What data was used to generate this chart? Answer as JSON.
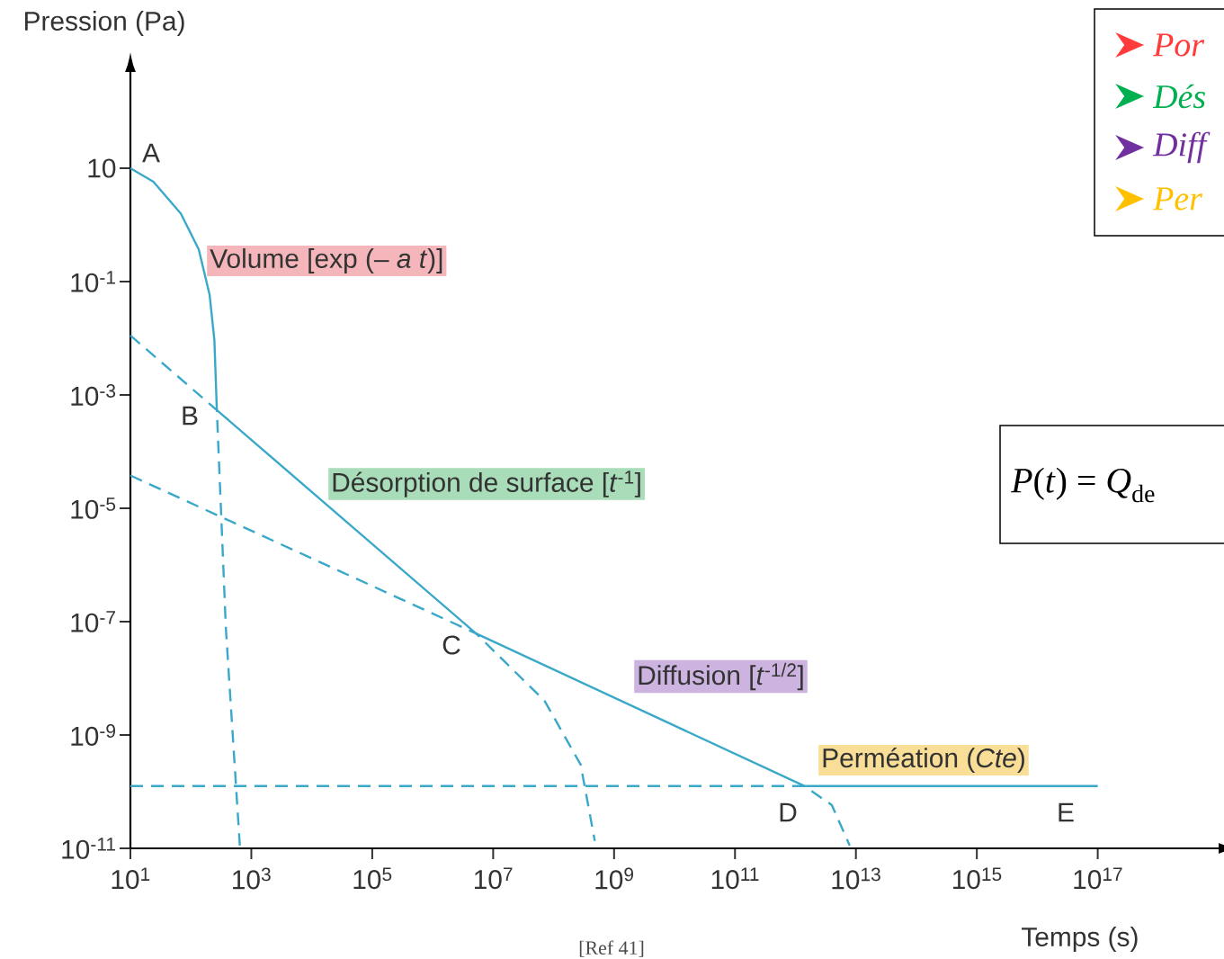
{
  "chart_data": {
    "type": "line",
    "xlabel": "Temps (s)",
    "ylabel": "Pression (Pa)",
    "log": "xy",
    "xlim": [
      10,
      1e+19
    ],
    "ylim": [
      1e-11,
      500
    ],
    "xticks": [
      {
        "value": 10.0,
        "label": "10$^{1}$"
      },
      {
        "value": 1000.0,
        "label": "10$^{3}$"
      },
      {
        "value": 100000.0,
        "label": "10$^{5}$"
      },
      {
        "value": 10000000.0,
        "label": "10$^{7}$"
      },
      {
        "value": 1000000000.0,
        "label": "10$^{9}$"
      },
      {
        "value": 100000000000.0,
        "label": "10$^{11}$"
      },
      {
        "value": 10000000000000.0,
        "label": "10$^{13}$"
      },
      {
        "value": 1000000000000000.0,
        "label": "10$^{15}$"
      },
      {
        "value": 1e+17,
        "label": "10$^{17}$"
      }
    ],
    "yticks": [
      {
        "value": 1e-11,
        "label": "10$^{-11}$"
      },
      {
        "value": 1e-09,
        "label": "10$^{-9}$"
      },
      {
        "value": 1e-07,
        "label": "10$^{-7}$"
      },
      {
        "value": 1e-05,
        "label": "10$^{-5}$"
      },
      {
        "value": 0.001,
        "label": "10$^{-3}$"
      },
      {
        "value": 0.1,
        "label": "10$^{-1}$"
      },
      10
    ],
    "series": [
      {
        "color": "#3aa8c8",
        "line_style": "solid",
        "x": [
          10,
          24,
          68,
          135,
          204,
          245,
          269,
          5200000.0,
          1400000000000.0,
          1e+17
        ],
        "values": [
          10,
          5.8,
          1.6,
          0.37,
          0.059,
          0.0093,
          0.00054,
          6.2e-08,
          1.26e-10,
          1.26e-10
        ]
      },
      {
        "color": "#3aa8c8",
        "line_style": "dashed",
        "x": [
          10,
          269,
          380,
          646
        ],
        "values": [
          0.0112,
          0.00054,
          7.4e-08,
          1.12e-11
        ]
      },
      {
        "color": "#3aa8c8",
        "line_style": "dashed",
        "x": [
          10,
          5200000.0,
          71000000.0,
          280000000.0,
          480000000.0
        ],
        "values": [
          3.8e-05,
          6.2e-08,
          4e-09,
          3e-10,
          1.35e-11
        ]
      },
      {
        "color": "#3aa8c8",
        "line_style": "dashed",
        "x": [
          10,
          1400000000000.0,
          4000000000000.0,
          7900000000000.0
        ],
        "values": [
          1.26e-10,
          1.26e-10,
          5.8e-11,
          1.12e-11
        ]
      }
    ],
    "annotations": [
      "A",
      "B",
      "C",
      "D",
      "E",
      "Volume  [exp (– *a t*)]",
      "Désorption de surface  [*t*$^{-1}$]",
      "Diffusion  [*t*$^{-1/2}$]",
      "Perméation (*Cte*)",
      "*Por*",
      "*Dés*",
      "*Diff*",
      "*Per*",
      "*P*(*t*) = *Q*$_{de}$",
      "[Ref 41]"
    ]
  }
}
